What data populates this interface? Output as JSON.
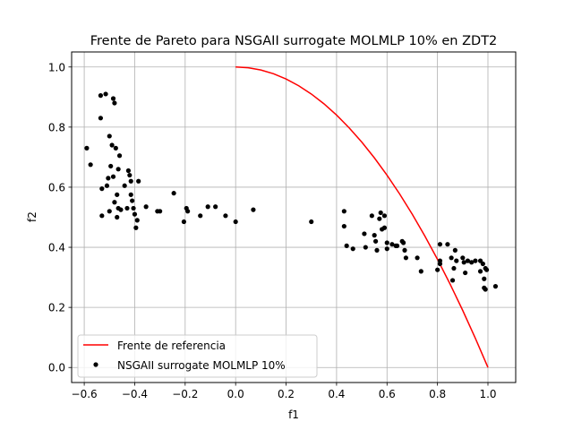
{
  "chart_data": {
    "type": "scatter",
    "title": "Frente de Pareto para NSGAII surrogate MOLMLP 10% en ZDT2",
    "xlabel": "f1",
    "ylabel": "f2",
    "xlim": [
      -0.65,
      1.11
    ],
    "ylim": [
      -0.05,
      1.05
    ],
    "xticks": [
      -0.6,
      -0.4,
      -0.2,
      0.0,
      0.2,
      0.4,
      0.6,
      0.8,
      1.0
    ],
    "xtick_labels": [
      "−0.6",
      "−0.4",
      "−0.2",
      "0.0",
      "0.2",
      "0.4",
      "0.6",
      "0.8",
      "1.0"
    ],
    "yticks": [
      0.0,
      0.2,
      0.4,
      0.6,
      0.8,
      1.0
    ],
    "ytick_labels": [
      "0.0",
      "0.2",
      "0.4",
      "0.6",
      "0.8",
      "1.0"
    ],
    "grid": true,
    "legend_position": "lower-left",
    "series": [
      {
        "name": "Frente de referencia",
        "kind": "line",
        "color": "#ff0000",
        "function": "f2 = 1 - f1^2",
        "x": [
          0.0,
          0.05,
          0.1,
          0.15,
          0.2,
          0.25,
          0.3,
          0.35,
          0.4,
          0.45,
          0.5,
          0.55,
          0.6,
          0.65,
          0.7,
          0.75,
          0.8,
          0.85,
          0.9,
          0.95,
          1.0
        ],
        "y": [
          1.0,
          0.9975,
          0.99,
          0.9775,
          0.96,
          0.9375,
          0.91,
          0.8775,
          0.84,
          0.7975,
          0.75,
          0.6975,
          0.64,
          0.5775,
          0.51,
          0.4375,
          0.36,
          0.2775,
          0.19,
          0.0975,
          0.0
        ]
      },
      {
        "name": "NSGAII surrogate MOLMLP 10%",
        "kind": "scatter",
        "color": "#000000",
        "points": [
          [
            -0.59,
            0.73
          ],
          [
            -0.575,
            0.675
          ],
          [
            -0.535,
            0.905
          ],
          [
            -0.535,
            0.83
          ],
          [
            -0.53,
            0.595
          ],
          [
            -0.53,
            0.505
          ],
          [
            -0.515,
            0.91
          ],
          [
            -0.51,
            0.605
          ],
          [
            -0.505,
            0.63
          ],
          [
            -0.5,
            0.77
          ],
          [
            -0.5,
            0.52
          ],
          [
            -0.495,
            0.67
          ],
          [
            -0.49,
            0.74
          ],
          [
            -0.485,
            0.895
          ],
          [
            -0.485,
            0.635
          ],
          [
            -0.48,
            0.88
          ],
          [
            -0.48,
            0.55
          ],
          [
            -0.475,
            0.73
          ],
          [
            -0.47,
            0.575
          ],
          [
            -0.47,
            0.5
          ],
          [
            -0.465,
            0.66
          ],
          [
            -0.465,
            0.53
          ],
          [
            -0.46,
            0.705
          ],
          [
            -0.455,
            0.525
          ],
          [
            -0.44,
            0.605
          ],
          [
            -0.43,
            0.53
          ],
          [
            -0.425,
            0.655
          ],
          [
            -0.42,
            0.64
          ],
          [
            -0.415,
            0.62
          ],
          [
            -0.415,
            0.575
          ],
          [
            -0.41,
            0.555
          ],
          [
            -0.405,
            0.53
          ],
          [
            -0.4,
            0.51
          ],
          [
            -0.395,
            0.465
          ],
          [
            -0.39,
            0.49
          ],
          [
            -0.385,
            0.62
          ],
          [
            -0.355,
            0.535
          ],
          [
            -0.31,
            0.52
          ],
          [
            -0.3,
            0.52
          ],
          [
            -0.245,
            0.58
          ],
          [
            -0.205,
            0.485
          ],
          [
            -0.195,
            0.53
          ],
          [
            -0.19,
            0.52
          ],
          [
            -0.14,
            0.505
          ],
          [
            -0.11,
            0.535
          ],
          [
            -0.08,
            0.535
          ],
          [
            -0.04,
            0.505
          ],
          [
            0.0,
            0.485
          ],
          [
            0.07,
            0.525
          ],
          [
            0.3,
            0.485
          ],
          [
            0.43,
            0.52
          ],
          [
            0.43,
            0.47
          ],
          [
            0.44,
            0.405
          ],
          [
            0.465,
            0.395
          ],
          [
            0.51,
            0.445
          ],
          [
            0.515,
            0.4
          ],
          [
            0.54,
            0.505
          ],
          [
            0.55,
            0.44
          ],
          [
            0.555,
            0.42
          ],
          [
            0.56,
            0.39
          ],
          [
            0.57,
            0.495
          ],
          [
            0.575,
            0.515
          ],
          [
            0.58,
            0.46
          ],
          [
            0.59,
            0.505
          ],
          [
            0.59,
            0.465
          ],
          [
            0.6,
            0.415
          ],
          [
            0.6,
            0.395
          ],
          [
            0.62,
            0.41
          ],
          [
            0.635,
            0.405
          ],
          [
            0.64,
            0.405
          ],
          [
            0.66,
            0.42
          ],
          [
            0.665,
            0.415
          ],
          [
            0.67,
            0.39
          ],
          [
            0.675,
            0.365
          ],
          [
            0.72,
            0.365
          ],
          [
            0.735,
            0.32
          ],
          [
            0.8,
            0.325
          ],
          [
            0.81,
            0.41
          ],
          [
            0.81,
            0.355
          ],
          [
            0.81,
            0.345
          ],
          [
            0.84,
            0.41
          ],
          [
            0.855,
            0.365
          ],
          [
            0.86,
            0.29
          ],
          [
            0.865,
            0.33
          ],
          [
            0.87,
            0.39
          ],
          [
            0.875,
            0.355
          ],
          [
            0.9,
            0.365
          ],
          [
            0.905,
            0.35
          ],
          [
            0.91,
            0.315
          ],
          [
            0.92,
            0.355
          ],
          [
            0.935,
            0.35
          ],
          [
            0.95,
            0.355
          ],
          [
            0.97,
            0.32
          ],
          [
            0.97,
            0.355
          ],
          [
            0.98,
            0.345
          ],
          [
            0.985,
            0.295
          ],
          [
            0.985,
            0.265
          ],
          [
            0.99,
            0.33
          ],
          [
            0.99,
            0.26
          ],
          [
            0.995,
            0.325
          ],
          [
            1.03,
            0.27
          ]
        ]
      }
    ]
  }
}
